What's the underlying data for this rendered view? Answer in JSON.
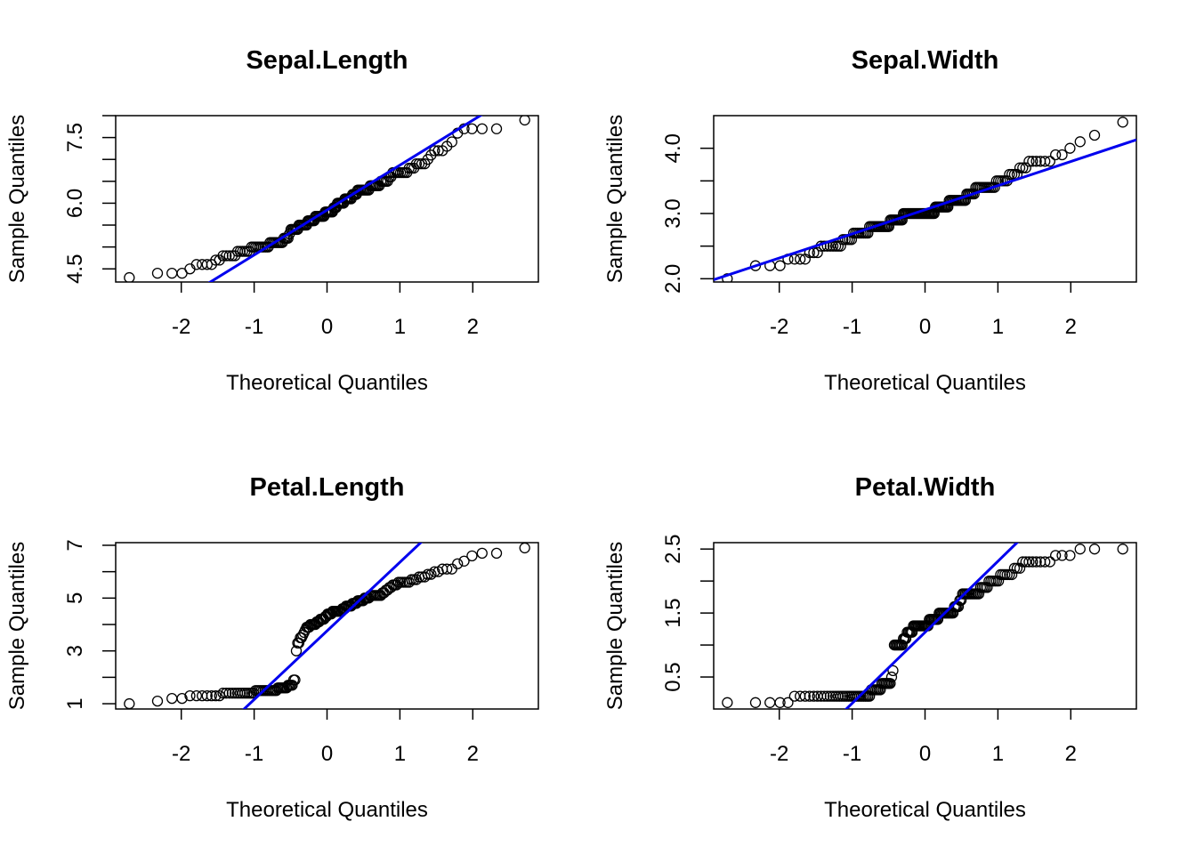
{
  "chart_data": [
    {
      "type": "scatter",
      "title": "Sepal.Length",
      "xlabel": "Theoretical Quantiles",
      "ylabel": "Sample Quantiles",
      "xlim": [
        -2.9,
        2.9
      ],
      "ylim": [
        4.2,
        8.0
      ],
      "xticks": [
        "-2",
        "-1",
        "0",
        "1",
        "2"
      ],
      "yticks": [
        "4.5",
        "6.0",
        "7.5"
      ],
      "yminor": [
        5.0,
        5.5,
        6.5,
        7.0,
        8.0
      ],
      "reference_line": {
        "color": "#0000ee",
        "intercept": 5.843,
        "slope": 1.026
      },
      "series": [
        {
          "values": [
            4.3,
            4.4,
            4.4,
            4.4,
            4.5,
            4.6,
            4.6,
            4.6,
            4.6,
            4.7,
            4.7,
            4.8,
            4.8,
            4.8,
            4.8,
            4.8,
            4.9,
            4.9,
            4.9,
            4.9,
            4.9,
            4.9,
            5.0,
            5.0,
            5.0,
            5.0,
            5.0,
            5.0,
            5.0,
            5.0,
            5.0,
            5.0,
            5.1,
            5.1,
            5.1,
            5.1,
            5.1,
            5.1,
            5.1,
            5.1,
            5.1,
            5.2,
            5.2,
            5.2,
            5.2,
            5.3,
            5.4,
            5.4,
            5.4,
            5.4,
            5.4,
            5.4,
            5.5,
            5.5,
            5.5,
            5.5,
            5.5,
            5.5,
            5.5,
            5.6,
            5.6,
            5.6,
            5.6,
            5.6,
            5.6,
            5.7,
            5.7,
            5.7,
            5.7,
            5.7,
            5.7,
            5.7,
            5.7,
            5.8,
            5.8,
            5.8,
            5.8,
            5.8,
            5.8,
            5.8,
            5.9,
            5.9,
            5.9,
            6.0,
            6.0,
            6.0,
            6.0,
            6.0,
            6.0,
            6.1,
            6.1,
            6.1,
            6.1,
            6.1,
            6.1,
            6.2,
            6.2,
            6.2,
            6.2,
            6.3,
            6.3,
            6.3,
            6.3,
            6.3,
            6.3,
            6.3,
            6.3,
            6.3,
            6.4,
            6.4,
            6.4,
            6.4,
            6.4,
            6.4,
            6.4,
            6.5,
            6.5,
            6.5,
            6.5,
            6.5,
            6.6,
            6.6,
            6.7,
            6.7,
            6.7,
            6.7,
            6.7,
            6.7,
            6.7,
            6.7,
            6.8,
            6.8,
            6.8,
            6.9,
            6.9,
            6.9,
            6.9,
            7.0,
            7.1,
            7.2,
            7.2,
            7.2,
            7.3,
            7.4,
            7.6,
            7.7,
            7.7,
            7.7,
            7.7,
            7.9
          ]
        }
      ]
    },
    {
      "type": "scatter",
      "title": "Sepal.Width",
      "xlabel": "Theoretical Quantiles",
      "ylabel": "Sample Quantiles",
      "xlim": [
        -2.9,
        2.9
      ],
      "ylim": [
        1.95,
        4.5
      ],
      "xticks": [
        "-2",
        "-1",
        "0",
        "1",
        "2"
      ],
      "yticks": [
        "2.0",
        "3.0",
        "4.0"
      ],
      "yminor": [
        2.5,
        3.5
      ],
      "reference_line": {
        "color": "#0000ee",
        "intercept": 3.057,
        "slope": 0.37
      },
      "series": [
        {
          "values": [
            2.0,
            2.2,
            2.2,
            2.2,
            2.3,
            2.3,
            2.3,
            2.3,
            2.4,
            2.4,
            2.4,
            2.5,
            2.5,
            2.5,
            2.5,
            2.5,
            2.5,
            2.5,
            2.5,
            2.6,
            2.6,
            2.6,
            2.6,
            2.6,
            2.7,
            2.7,
            2.7,
            2.7,
            2.7,
            2.7,
            2.7,
            2.7,
            2.7,
            2.8,
            2.8,
            2.8,
            2.8,
            2.8,
            2.8,
            2.8,
            2.8,
            2.8,
            2.8,
            2.8,
            2.8,
            2.8,
            2.8,
            2.9,
            2.9,
            2.9,
            2.9,
            2.9,
            2.9,
            2.9,
            2.9,
            2.9,
            2.9,
            3.0,
            3.0,
            3.0,
            3.0,
            3.0,
            3.0,
            3.0,
            3.0,
            3.0,
            3.0,
            3.0,
            3.0,
            3.0,
            3.0,
            3.0,
            3.0,
            3.0,
            3.0,
            3.0,
            3.0,
            3.0,
            3.0,
            3.0,
            3.0,
            3.0,
            3.0,
            3.1,
            3.1,
            3.1,
            3.1,
            3.1,
            3.1,
            3.1,
            3.1,
            3.1,
            3.1,
            3.1,
            3.2,
            3.2,
            3.2,
            3.2,
            3.2,
            3.2,
            3.2,
            3.2,
            3.2,
            3.2,
            3.2,
            3.2,
            3.2,
            3.3,
            3.3,
            3.3,
            3.3,
            3.3,
            3.3,
            3.4,
            3.4,
            3.4,
            3.4,
            3.4,
            3.4,
            3.4,
            3.4,
            3.4,
            3.4,
            3.4,
            3.4,
            3.5,
            3.5,
            3.5,
            3.5,
            3.5,
            3.5,
            3.6,
            3.6,
            3.6,
            3.6,
            3.7,
            3.7,
            3.7,
            3.8,
            3.8,
            3.8,
            3.8,
            3.8,
            3.8,
            3.9,
            3.9,
            4.0,
            4.1,
            4.2,
            4.4
          ]
        }
      ]
    },
    {
      "type": "scatter",
      "title": "Petal.Length",
      "xlabel": "Theoretical Quantiles",
      "ylabel": "Sample Quantiles",
      "xlim": [
        -2.9,
        2.9
      ],
      "ylim": [
        0.8,
        7.1
      ],
      "xticks": [
        "-2",
        "-1",
        "0",
        "1",
        "2"
      ],
      "yticks": [
        "1",
        "3",
        "5",
        "7"
      ],
      "yminor": [
        2,
        4,
        6
      ],
      "reference_line": {
        "color": "#0000ee",
        "intercept": 3.758,
        "slope": 2.6
      },
      "series": [
        {
          "values": [
            1.0,
            1.1,
            1.2,
            1.2,
            1.3,
            1.3,
            1.3,
            1.3,
            1.3,
            1.3,
            1.3,
            1.4,
            1.4,
            1.4,
            1.4,
            1.4,
            1.4,
            1.4,
            1.4,
            1.4,
            1.4,
            1.4,
            1.4,
            1.4,
            1.5,
            1.5,
            1.5,
            1.5,
            1.5,
            1.5,
            1.5,
            1.5,
            1.5,
            1.5,
            1.5,
            1.5,
            1.5,
            1.6,
            1.6,
            1.6,
            1.6,
            1.6,
            1.6,
            1.6,
            1.7,
            1.7,
            1.7,
            1.7,
            1.9,
            1.9,
            3.0,
            3.3,
            3.3,
            3.5,
            3.5,
            3.6,
            3.7,
            3.8,
            3.9,
            3.9,
            3.9,
            4.0,
            4.0,
            4.0,
            4.0,
            4.0,
            4.1,
            4.1,
            4.1,
            4.2,
            4.2,
            4.2,
            4.2,
            4.3,
            4.3,
            4.4,
            4.4,
            4.4,
            4.4,
            4.5,
            4.5,
            4.5,
            4.5,
            4.5,
            4.5,
            4.5,
            4.5,
            4.6,
            4.6,
            4.6,
            4.7,
            4.7,
            4.7,
            4.7,
            4.7,
            4.8,
            4.8,
            4.8,
            4.8,
            4.9,
            4.9,
            4.9,
            4.9,
            4.9,
            5.0,
            5.0,
            5.0,
            5.0,
            5.1,
            5.1,
            5.1,
            5.1,
            5.1,
            5.1,
            5.1,
            5.1,
            5.2,
            5.2,
            5.3,
            5.3,
            5.4,
            5.4,
            5.5,
            5.5,
            5.5,
            5.6,
            5.6,
            5.6,
            5.6,
            5.6,
            5.6,
            5.7,
            5.7,
            5.7,
            5.8,
            5.8,
            5.8,
            5.9,
            5.9,
            6.0,
            6.0,
            6.1,
            6.1,
            6.1,
            6.3,
            6.4,
            6.6,
            6.7,
            6.7,
            6.9
          ]
        }
      ]
    },
    {
      "type": "scatter",
      "title": "Petal.Width",
      "xlabel": "Theoretical Quantiles",
      "ylabel": "Sample Quantiles",
      "xlim": [
        -2.9,
        2.9
      ],
      "ylim": [
        0.0,
        2.6
      ],
      "xticks": [
        "-2",
        "-1",
        "0",
        "1",
        "2"
      ],
      "yticks": [
        "0.5",
        "1.5",
        "2.5"
      ],
      "yminor": [
        1.0,
        2.0
      ],
      "reference_line": {
        "color": "#0000ee",
        "intercept": 1.199,
        "slope": 1.11
      },
      "series": [
        {
          "values": [
            0.1,
            0.1,
            0.1,
            0.1,
            0.1,
            0.2,
            0.2,
            0.2,
            0.2,
            0.2,
            0.2,
            0.2,
            0.2,
            0.2,
            0.2,
            0.2,
            0.2,
            0.2,
            0.2,
            0.2,
            0.2,
            0.2,
            0.2,
            0.2,
            0.2,
            0.2,
            0.2,
            0.2,
            0.2,
            0.2,
            0.2,
            0.2,
            0.2,
            0.2,
            0.3,
            0.3,
            0.3,
            0.3,
            0.3,
            0.3,
            0.3,
            0.4,
            0.4,
            0.4,
            0.4,
            0.4,
            0.4,
            0.4,
            0.5,
            0.6,
            1.0,
            1.0,
            1.0,
            1.0,
            1.0,
            1.0,
            1.0,
            1.1,
            1.1,
            1.1,
            1.2,
            1.2,
            1.2,
            1.2,
            1.2,
            1.3,
            1.3,
            1.3,
            1.3,
            1.3,
            1.3,
            1.3,
            1.3,
            1.3,
            1.3,
            1.3,
            1.3,
            1.3,
            1.4,
            1.4,
            1.4,
            1.4,
            1.4,
            1.4,
            1.4,
            1.4,
            1.5,
            1.5,
            1.5,
            1.5,
            1.5,
            1.5,
            1.5,
            1.5,
            1.5,
            1.5,
            1.5,
            1.5,
            1.6,
            1.6,
            1.6,
            1.6,
            1.7,
            1.7,
            1.8,
            1.8,
            1.8,
            1.8,
            1.8,
            1.8,
            1.8,
            1.8,
            1.8,
            1.8,
            1.8,
            1.8,
            1.9,
            1.9,
            1.9,
            1.9,
            1.9,
            2.0,
            2.0,
            2.0,
            2.0,
            2.0,
            2.0,
            2.1,
            2.1,
            2.1,
            2.1,
            2.1,
            2.1,
            2.2,
            2.2,
            2.2,
            2.3,
            2.3,
            2.3,
            2.3,
            2.3,
            2.3,
            2.3,
            2.3,
            2.4,
            2.4,
            2.4,
            2.5,
            2.5,
            2.5
          ]
        }
      ]
    }
  ]
}
